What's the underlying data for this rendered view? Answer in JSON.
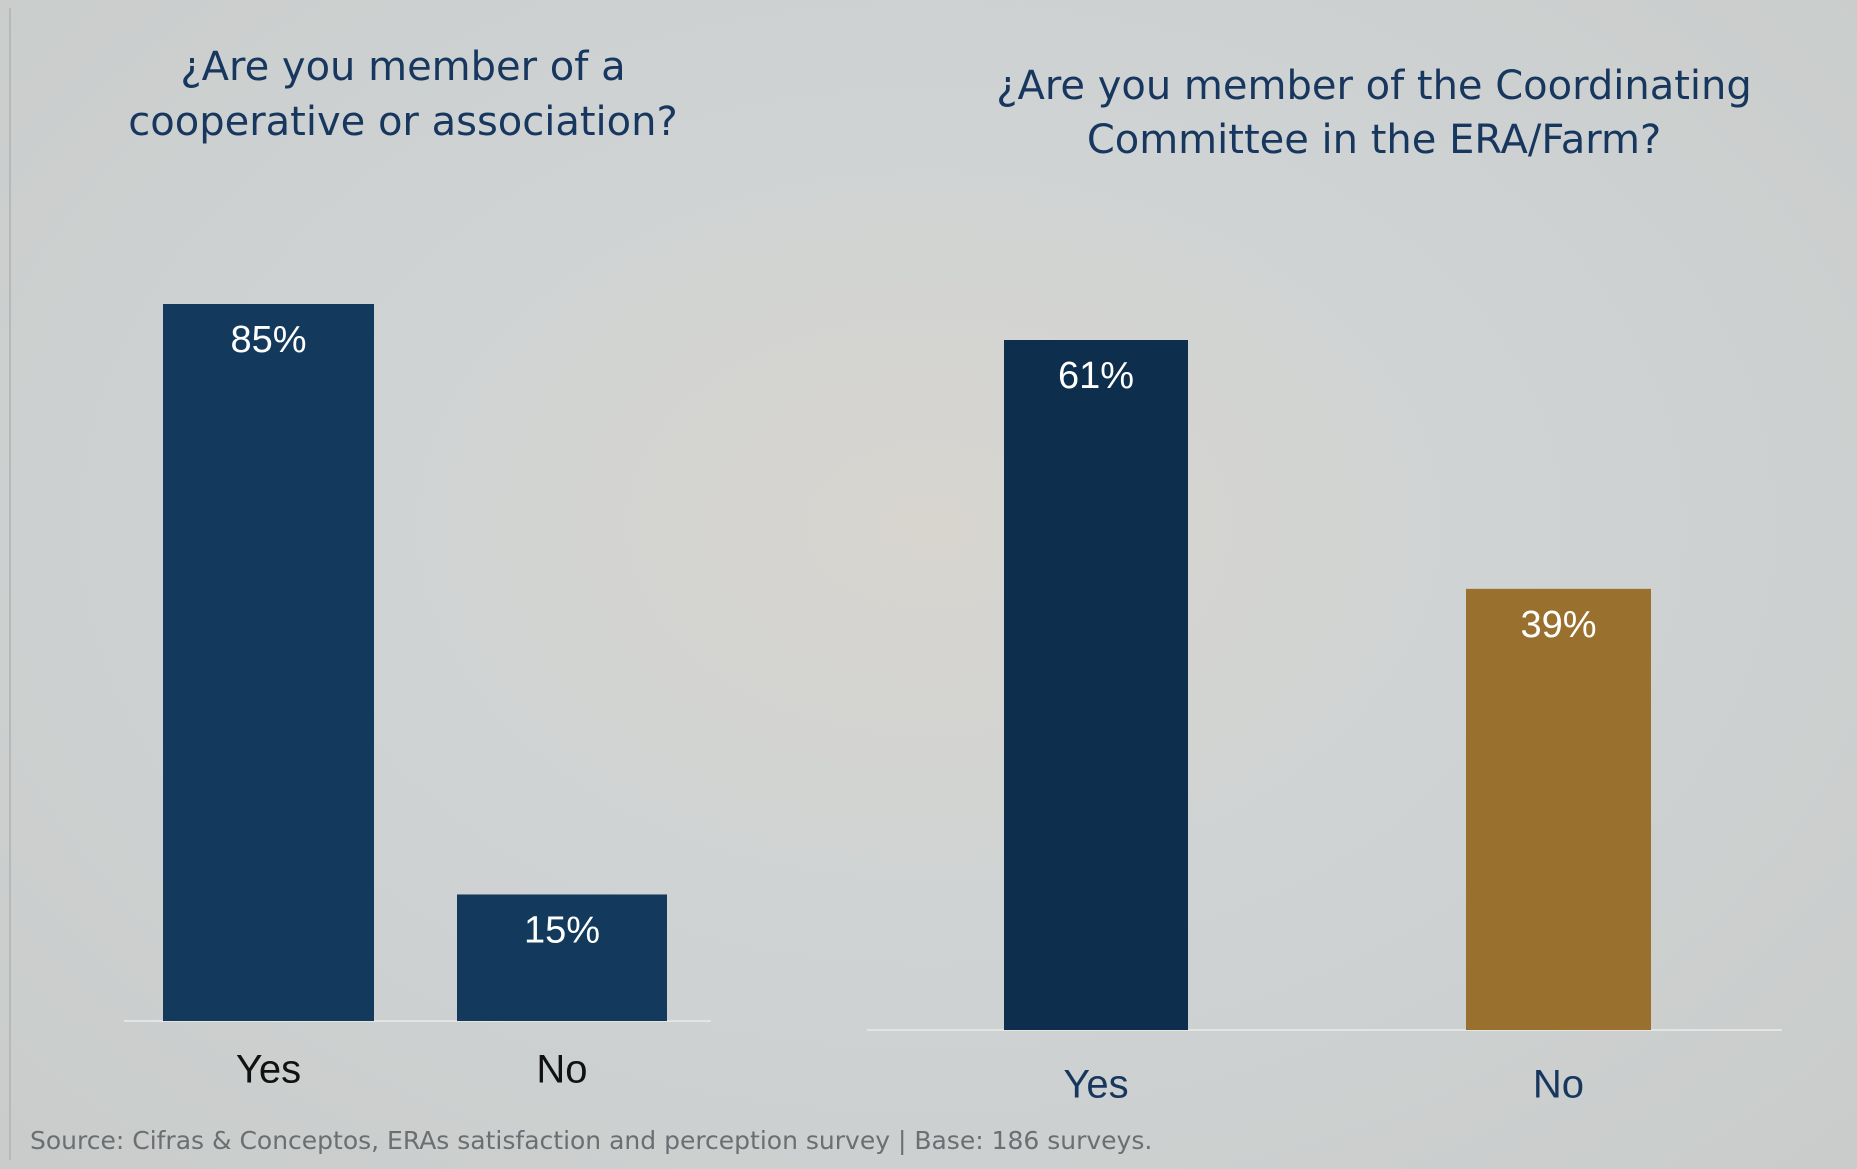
{
  "chart_data": [
    {
      "type": "bar",
      "title": [
        "¿Are you member of a",
        "cooperative or association?"
      ],
      "categories": [
        "Yes",
        "No"
      ],
      "values": [
        85,
        15
      ],
      "value_labels": [
        "85%",
        "15%"
      ],
      "colors": [
        "#133a5c",
        "#133a5c"
      ]
    },
    {
      "type": "bar",
      "title": [
        "¿Are you member of the Coordinating",
        "Committee in the ERA/Farm?"
      ],
      "categories": [
        "Yes",
        "No"
      ],
      "values": [
        61,
        39
      ],
      "value_labels": [
        "61%",
        "39%"
      ],
      "colors": [
        "#0d2e4c",
        "#9a702e"
      ]
    }
  ],
  "source": "Source: Cifras & Conceptos, ERAs satisfaction and perception survey | Base: 186 surveys."
}
